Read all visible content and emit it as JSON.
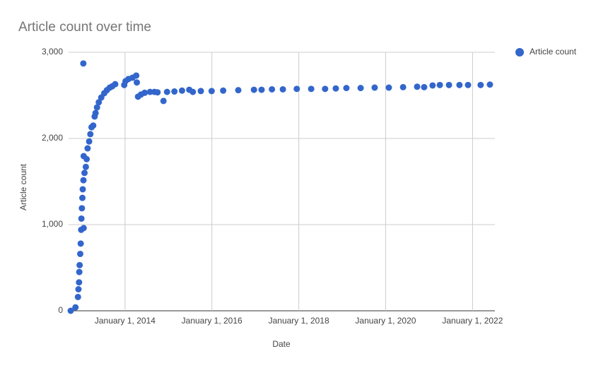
{
  "chart_data": {
    "type": "scatter",
    "title": "Article count over time",
    "x_label": "Date",
    "y_label": "Article count",
    "legend": "right",
    "grid": true,
    "xlim": [
      "2012-09-13",
      "2022-07-08"
    ],
    "xticks": [
      {
        "value": "2014-01-01",
        "label": "January 1, 2014"
      },
      {
        "value": "2016-01-01",
        "label": "January 1, 2016"
      },
      {
        "value": "2018-01-01",
        "label": "January 1, 2018"
      },
      {
        "value": "2020-01-01",
        "label": "January 1, 2020"
      },
      {
        "value": "2022-01-01",
        "label": "January 1, 2022"
      }
    ],
    "ylim": [
      0,
      3000
    ],
    "yticks": [
      0,
      {
        "value": 1000,
        "label": "1,000"
      },
      {
        "value": 2000,
        "label": "2,000"
      },
      {
        "value": 3000,
        "label": "3,000"
      }
    ],
    "series": [
      {
        "name": "Article count",
        "color": "#3366cc",
        "x": [
          "2012-10-01",
          "2012-11-10",
          "2012-12-01",
          "2012-12-05",
          "2012-12-10",
          "2012-12-12",
          "2012-12-15",
          "2012-12-20",
          "2012-12-24",
          "2012-12-28",
          "2012-12-30",
          "2013-01-03",
          "2013-01-07",
          "2013-01-10",
          "2013-01-15",
          "2013-01-18",
          "2013-01-18",
          "2013-01-16",
          "2013-01-25",
          "2013-02-05",
          "2013-02-12",
          "2013-02-20",
          "2013-03-05",
          "2013-03-15",
          "2013-03-25",
          "2013-04-08",
          "2013-04-20",
          "2013-04-28",
          "2013-05-10",
          "2013-05-25",
          "2013-06-15",
          "2013-07-10",
          "2013-08-01",
          "2013-08-25",
          "2013-09-15",
          "2013-10-10",
          "2013-12-25",
          "2014-01-05",
          "2014-01-30",
          "2014-03-05",
          "2014-04-05",
          "2014-04-10",
          "2014-04-20",
          "2014-05-15",
          "2014-06-15",
          "2014-07-30",
          "2014-09-05",
          "2014-10-01",
          "2014-11-20",
          "2014-12-20",
          "2015-02-20",
          "2015-04-25",
          "2015-06-25",
          "2015-07-25",
          "2015-09-30",
          "2015-12-30",
          "2016-04-05",
          "2016-08-10",
          "2016-12-20",
          "2017-02-22",
          "2017-05-20",
          "2017-08-20",
          "2017-12-15",
          "2018-04-15",
          "2018-08-10",
          "2018-11-08",
          "2019-02-05",
          "2019-06-05",
          "2019-10-01",
          "2020-01-28",
          "2020-05-27",
          "2020-09-22",
          "2020-11-20",
          "2021-01-30",
          "2021-04-01",
          "2021-06-17",
          "2021-09-13",
          "2021-11-24",
          "2022-03-10",
          "2022-05-27"
        ],
        "values": [
          0,
          40,
          160,
          250,
          330,
          450,
          530,
          660,
          780,
          940,
          1070,
          1190,
          1310,
          1410,
          2870,
          1795,
          960,
          1515,
          1600,
          1670,
          1760,
          1885,
          1965,
          2050,
          2130,
          2150,
          2255,
          2295,
          2360,
          2420,
          2475,
          2525,
          2560,
          2590,
          2605,
          2630,
          2620,
          2665,
          2690,
          2705,
          2730,
          2650,
          2485,
          2510,
          2530,
          2540,
          2540,
          2535,
          2435,
          2540,
          2545,
          2555,
          2565,
          2540,
          2550,
          2550,
          2555,
          2560,
          2565,
          2565,
          2570,
          2570,
          2575,
          2575,
          2575,
          2580,
          2585,
          2585,
          2590,
          2590,
          2595,
          2600,
          2595,
          2615,
          2620,
          2620,
          2620,
          2620,
          2620,
          2625
        ]
      }
    ]
  }
}
